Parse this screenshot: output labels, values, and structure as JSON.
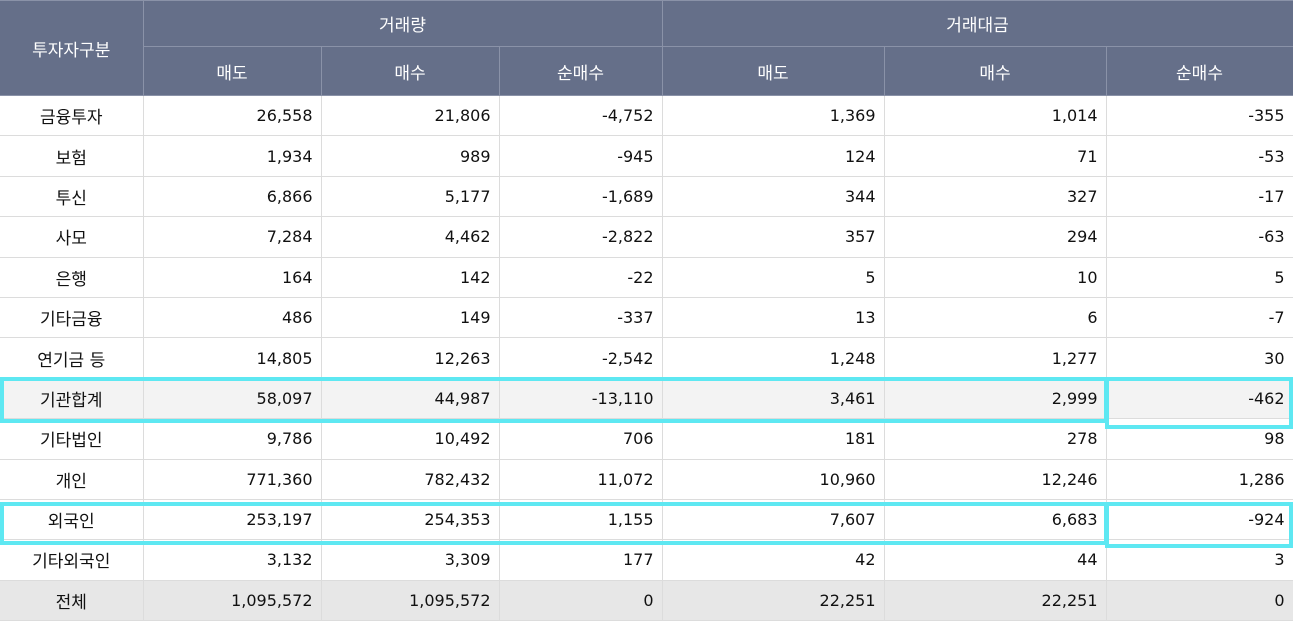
{
  "header": {
    "investor_type": "투자자구분",
    "group_volume": "거래량",
    "group_value": "거래대금",
    "columns": [
      "매도",
      "매수",
      "순매수",
      "매도",
      "매수",
      "순매수"
    ]
  },
  "rows": [
    {
      "name": "금융투자",
      "values": [
        "26,558",
        "21,806",
        "-4,752",
        "1,369",
        "1,014",
        "-355"
      ]
    },
    {
      "name": "보험",
      "values": [
        "1,934",
        "989",
        "-945",
        "124",
        "71",
        "-53"
      ]
    },
    {
      "name": "투신",
      "values": [
        "6,866",
        "5,177",
        "-1,689",
        "344",
        "327",
        "-17"
      ]
    },
    {
      "name": "사모",
      "values": [
        "7,284",
        "4,462",
        "-2,822",
        "357",
        "294",
        "-63"
      ]
    },
    {
      "name": "은행",
      "values": [
        "164",
        "142",
        "-22",
        "5",
        "10",
        "5"
      ]
    },
    {
      "name": "기타금융",
      "values": [
        "486",
        "149",
        "-337",
        "13",
        "6",
        "-7"
      ]
    },
    {
      "name": "연기금 등",
      "values": [
        "14,805",
        "12,263",
        "-2,542",
        "1,248",
        "1,277",
        "30"
      ]
    },
    {
      "name": "기관합계",
      "values": [
        "58,097",
        "44,987",
        "-13,110",
        "3,461",
        "2,999",
        "-462"
      ]
    },
    {
      "name": "기타법인",
      "values": [
        "9,786",
        "10,492",
        "706",
        "181",
        "278",
        "98"
      ]
    },
    {
      "name": "개인",
      "values": [
        "771,360",
        "782,432",
        "11,072",
        "10,960",
        "12,246",
        "1,286"
      ]
    },
    {
      "name": "외국인",
      "values": [
        "253,197",
        "254,353",
        "1,155",
        "7,607",
        "6,683",
        "-924"
      ]
    },
    {
      "name": "기타외국인",
      "values": [
        "3,132",
        "3,309",
        "177",
        "42",
        "44",
        "3"
      ]
    },
    {
      "name": "전체",
      "values": [
        "1,095,572",
        "1,095,572",
        "0",
        "22,251",
        "22,251",
        "0"
      ]
    }
  ],
  "colors": {
    "header_bg": "#656f89",
    "highlight": "#5ee8f2"
  }
}
